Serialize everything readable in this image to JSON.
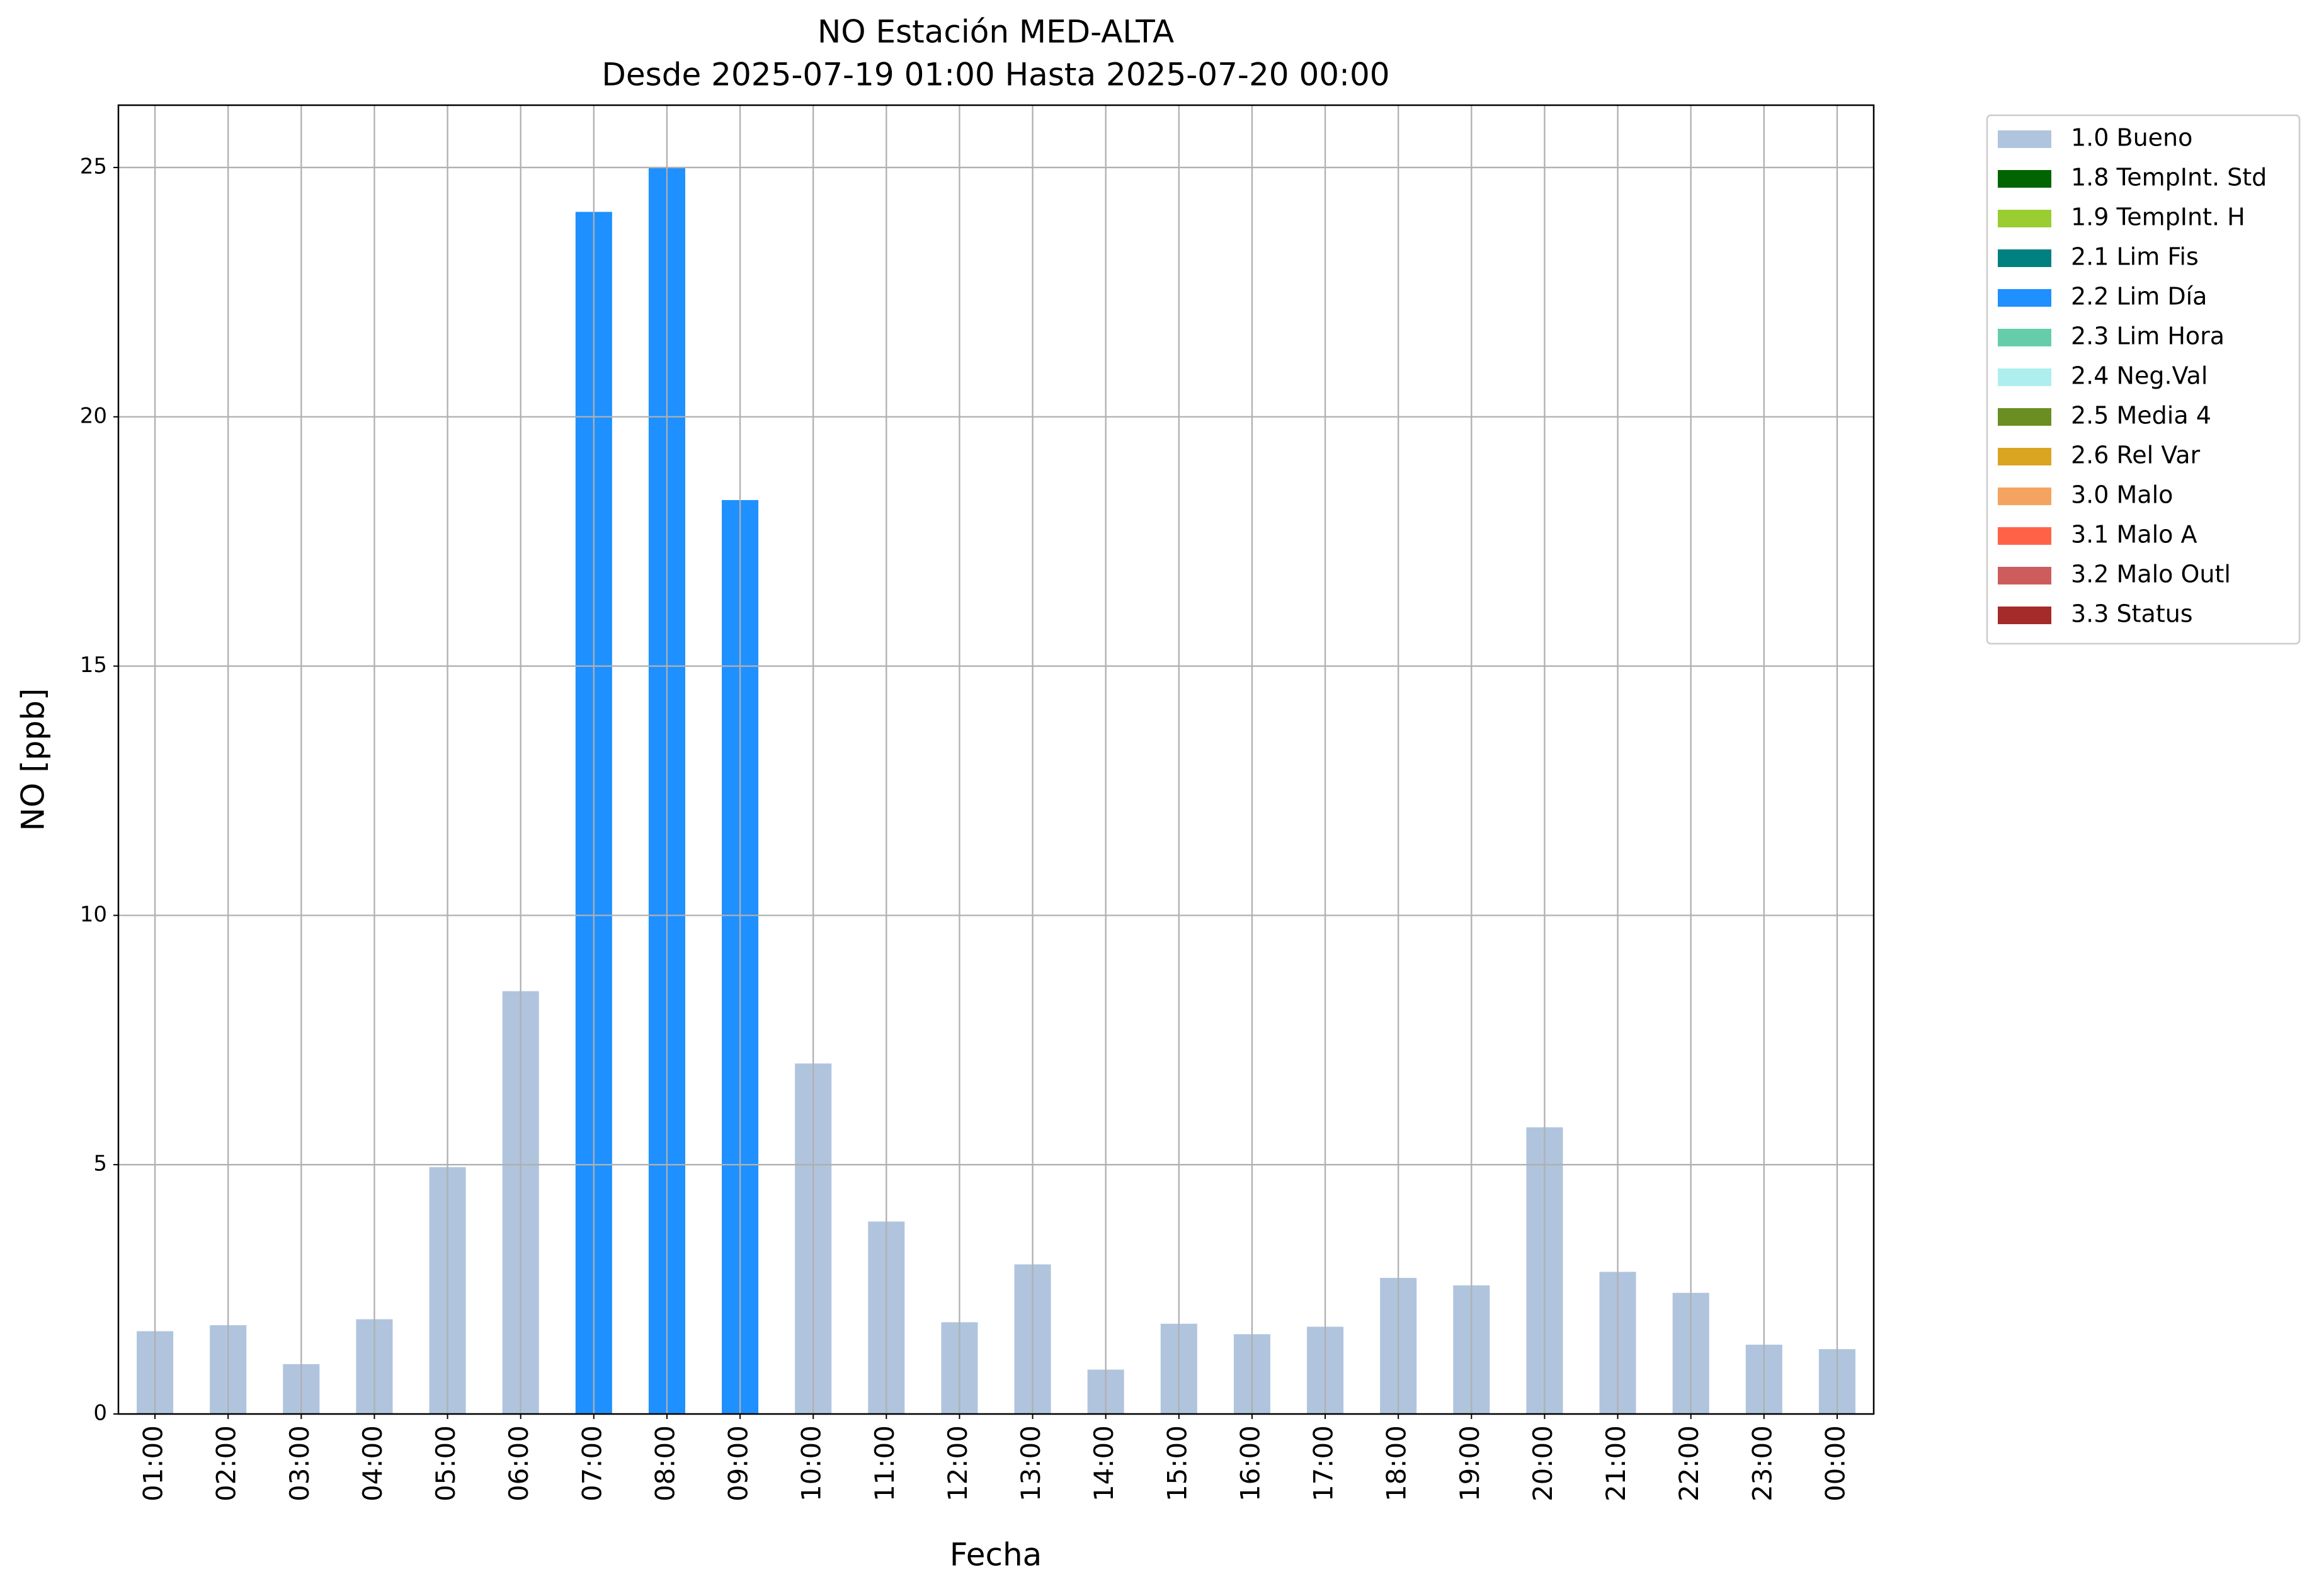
{
  "chart_data": {
    "type": "bar",
    "stacked": true,
    "title": "NO Estación MED-ALTA",
    "subtitle": "Desde 2025-07-19 01:00 Hasta 2025-07-20 00:00",
    "x_label": "Fecha",
    "y_label": "NO [ppb]",
    "categories": [
      "01:00",
      "02:00",
      "03:00",
      "04:00",
      "05:00",
      "06:00",
      "07:00",
      "08:00",
      "09:00",
      "10:00",
      "11:00",
      "12:00",
      "13:00",
      "14:00",
      "15:00",
      "16:00",
      "17:00",
      "18:00",
      "19:00",
      "20:00",
      "21:00",
      "22:00",
      "23:00",
      "00:00"
    ],
    "series": [
      {
        "name": "1.0 Bueno",
        "color": "#b0c4de",
        "values": [
          1.66,
          1.78,
          1.0,
          1.9,
          4.95,
          8.48,
          null,
          null,
          null,
          7.03,
          3.86,
          1.84,
          3.0,
          0.89,
          1.81,
          1.6,
          1.75,
          2.73,
          2.58,
          5.75,
          2.85,
          2.43,
          1.39,
          1.3
        ]
      },
      {
        "name": "1.8 TempInt. Std",
        "color": "#006400",
        "values": [
          null,
          null,
          null,
          null,
          null,
          null,
          null,
          null,
          null,
          null,
          null,
          null,
          null,
          null,
          null,
          null,
          null,
          null,
          null,
          null,
          null,
          null,
          null,
          null
        ]
      },
      {
        "name": "1.9 TempInt. H",
        "color": "#9acd32",
        "values": [
          null,
          null,
          null,
          null,
          null,
          null,
          null,
          null,
          null,
          null,
          null,
          null,
          null,
          null,
          null,
          null,
          null,
          null,
          null,
          null,
          null,
          null,
          null,
          null
        ]
      },
      {
        "name": "2.1 Lim Fis",
        "color": "#008080",
        "values": [
          null,
          null,
          null,
          null,
          null,
          null,
          null,
          null,
          null,
          null,
          null,
          null,
          null,
          null,
          null,
          null,
          null,
          null,
          null,
          null,
          null,
          null,
          null,
          null
        ]
      },
      {
        "name": "2.2 Lim Día",
        "color": "#1e90ff",
        "values": [
          null,
          null,
          null,
          null,
          null,
          null,
          24.11,
          25.0,
          18.33,
          null,
          null,
          null,
          null,
          null,
          null,
          null,
          null,
          null,
          null,
          null,
          null,
          null,
          null,
          null
        ]
      },
      {
        "name": "2.3 Lim Hora",
        "color": "#66cdaa",
        "values": [
          null,
          null,
          null,
          null,
          null,
          null,
          null,
          null,
          null,
          null,
          null,
          null,
          null,
          null,
          null,
          null,
          null,
          null,
          null,
          null,
          null,
          null,
          null,
          null
        ]
      },
      {
        "name": "2.4 Neg.Val",
        "color": "#afeeee",
        "values": [
          null,
          null,
          null,
          null,
          null,
          null,
          null,
          null,
          null,
          null,
          null,
          null,
          null,
          null,
          null,
          null,
          null,
          null,
          null,
          null,
          null,
          null,
          null,
          null
        ]
      },
      {
        "name": "2.5 Media 4",
        "color": "#6b8e23",
        "values": [
          null,
          null,
          null,
          null,
          null,
          null,
          null,
          null,
          null,
          null,
          null,
          null,
          null,
          null,
          null,
          null,
          null,
          null,
          null,
          null,
          null,
          null,
          null,
          null
        ]
      },
      {
        "name": "2.6 Rel Var",
        "color": "#daa520",
        "values": [
          null,
          null,
          null,
          null,
          null,
          null,
          null,
          null,
          null,
          null,
          null,
          null,
          null,
          null,
          null,
          null,
          null,
          null,
          null,
          null,
          null,
          null,
          null,
          null
        ]
      },
      {
        "name": "3.0 Malo",
        "color": "#f4a460",
        "values": [
          null,
          null,
          null,
          null,
          null,
          null,
          null,
          null,
          null,
          null,
          null,
          null,
          null,
          null,
          null,
          null,
          null,
          null,
          null,
          null,
          null,
          null,
          null,
          null
        ]
      },
      {
        "name": "3.1 Malo A",
        "color": "#ff6347",
        "values": [
          null,
          null,
          null,
          null,
          null,
          null,
          null,
          null,
          null,
          null,
          null,
          null,
          null,
          null,
          null,
          null,
          null,
          null,
          null,
          null,
          null,
          null,
          null,
          null
        ]
      },
      {
        "name": "3.2 Malo Outl",
        "color": "#cd5c5c",
        "values": [
          null,
          null,
          null,
          null,
          null,
          null,
          null,
          null,
          null,
          null,
          null,
          null,
          null,
          null,
          null,
          null,
          null,
          null,
          null,
          null,
          null,
          null,
          null,
          null
        ]
      },
      {
        "name": "3.3 Status",
        "color": "#a52a2a",
        "values": [
          null,
          null,
          null,
          null,
          null,
          null,
          null,
          null,
          null,
          null,
          null,
          null,
          null,
          null,
          null,
          null,
          null,
          null,
          null,
          null,
          null,
          null,
          null,
          null
        ]
      }
    ],
    "ylim": [
      0,
      26.25
    ],
    "yticks": [
      0,
      5,
      10,
      15,
      20,
      25
    ],
    "grid": true,
    "legend": "outside-upper-right"
  }
}
